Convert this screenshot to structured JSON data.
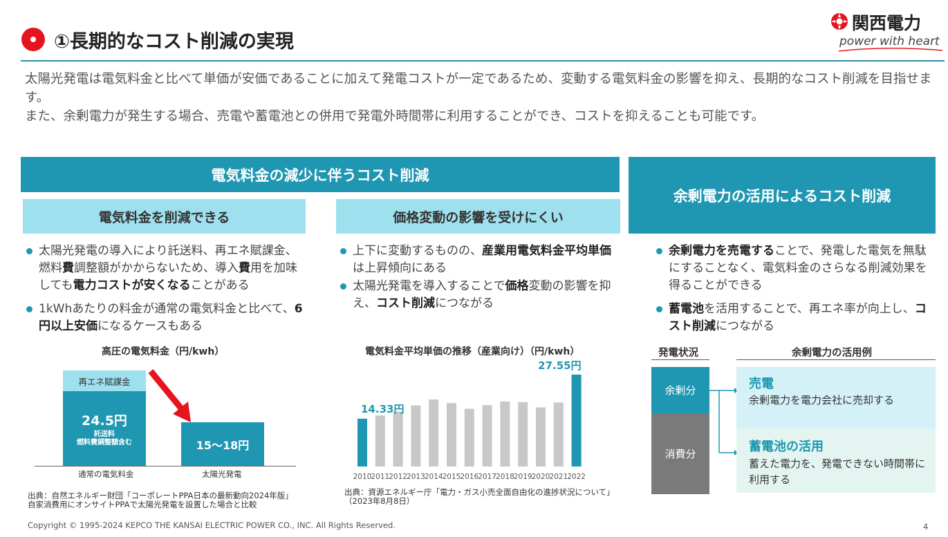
{
  "header": {
    "title": "①長期的なコスト削減の実現",
    "logo_text_jp": "関西電力",
    "logo_text_en": "power with heart"
  },
  "intro": {
    "line1": "太陽光発電は電気料金と比べて単価が安価であることに加えて発電コストが一定であるため、変動する電気料金の影響を抑え、長期的なコスト削減を目指せます。",
    "line2": "また、余剰電力が発生する場合、売電や蓄電池との併用で発電外時間帯に利用することができ、コストを抑えることも可能です。"
  },
  "left_band": {
    "title": "電気料金の減少に伴うコスト削減"
  },
  "right_band": {
    "title": "余剰電力の活用によるコスト削減"
  },
  "col1": {
    "heading": "電気料金を削減できる",
    "b1": [
      "太陽光発電の導入により託送料、再エネ賦課金、燃料",
      "費",
      "調整額がかからないため、導入",
      "費",
      "用を加味しても",
      "電力コストが安くなる",
      "ことがある"
    ],
    "b2": [
      "1kWhあたりの料金が通常の電気料金と比べて、",
      "6円以上安価",
      "になるケースもある"
    ],
    "chart": {
      "title": "高圧の電気料金（円/kwh）",
      "surcharge_label": "再エネ賦課金",
      "value_left": "24.5円",
      "sub_left_1": "託送料",
      "sub_left_2": "燃料費調整額含む",
      "value_right": "15～18円",
      "cat_left": "通常の電気料金",
      "cat_right": "太陽光発電"
    },
    "source_1": "出典：自然エネルギー財団「コーポレートPPA日本の最新動向2024年版」",
    "source_2": "自家消費用にオンサイトPPAで太陽光発電を設置した場合と比較"
  },
  "col2": {
    "heading": "価格変動の影響を受けにくい",
    "b1": [
      "上下に変動するものの、",
      "産業用電気料金平均単価",
      "は上昇傾向にある"
    ],
    "b2": [
      "太陽光発電を導入することで",
      "価格",
      "変動の影響を抑え、",
      "コスト削減",
      "につながる"
    ],
    "source_1": "出典：資源エネルギー庁「電力・ガス小売全面自由化の進捗状況について」",
    "source_2": "（2023年8月8日）"
  },
  "chart_data": [
    {
      "type": "bar",
      "title": "電気料金平均単価の推移（産業向け）（円/kwh）",
      "categories": [
        "2010",
        "2011",
        "2012",
        "2013",
        "2014",
        "2015",
        "2016",
        "2017",
        "2018",
        "2019",
        "2020",
        "2021",
        "2022"
      ],
      "values": [
        14.33,
        15.3,
        16.5,
        18.3,
        20.1,
        19.0,
        17.3,
        18.4,
        19.5,
        19.3,
        17.7,
        19.2,
        27.55
      ],
      "data_labels": {
        "first": "14.33円",
        "last": "27.55円"
      },
      "ylim": [
        0,
        29
      ],
      "highlight_color": "#1f97b2",
      "base_color": "#c8c8c8"
    }
  ],
  "col3": {
    "b1": [
      "余剰電力を売電する",
      "ことで、発電した電気を無駄にすることなく、電気料金のさらなる削減効果を得ることができる"
    ],
    "b2": [
      "蓄電池",
      "を活用することで、再エネ率が向上し、",
      "コスト削減",
      "につながる"
    ],
    "status_head": "発電状況",
    "usage_head": "余剰電力の活用例",
    "surplus": "余剰分",
    "consumed": "消費分",
    "sell_title": "売電",
    "sell_desc": "余剰電力を電力会社に売却する",
    "battery_title": "蓄電池の活用",
    "battery_desc": "蓄えた電力を、発電できない時間帯に利用する"
  },
  "footer": {
    "copyright": "Copyright © 1995-2024 KEPCO THE KANSAI ELECTRIC POWER CO., INC. All Rights Reserved.",
    "page": "4"
  },
  "colors": {
    "accent": "#1f97b2",
    "light": "#9fe0ee",
    "red": "#e4151f"
  }
}
